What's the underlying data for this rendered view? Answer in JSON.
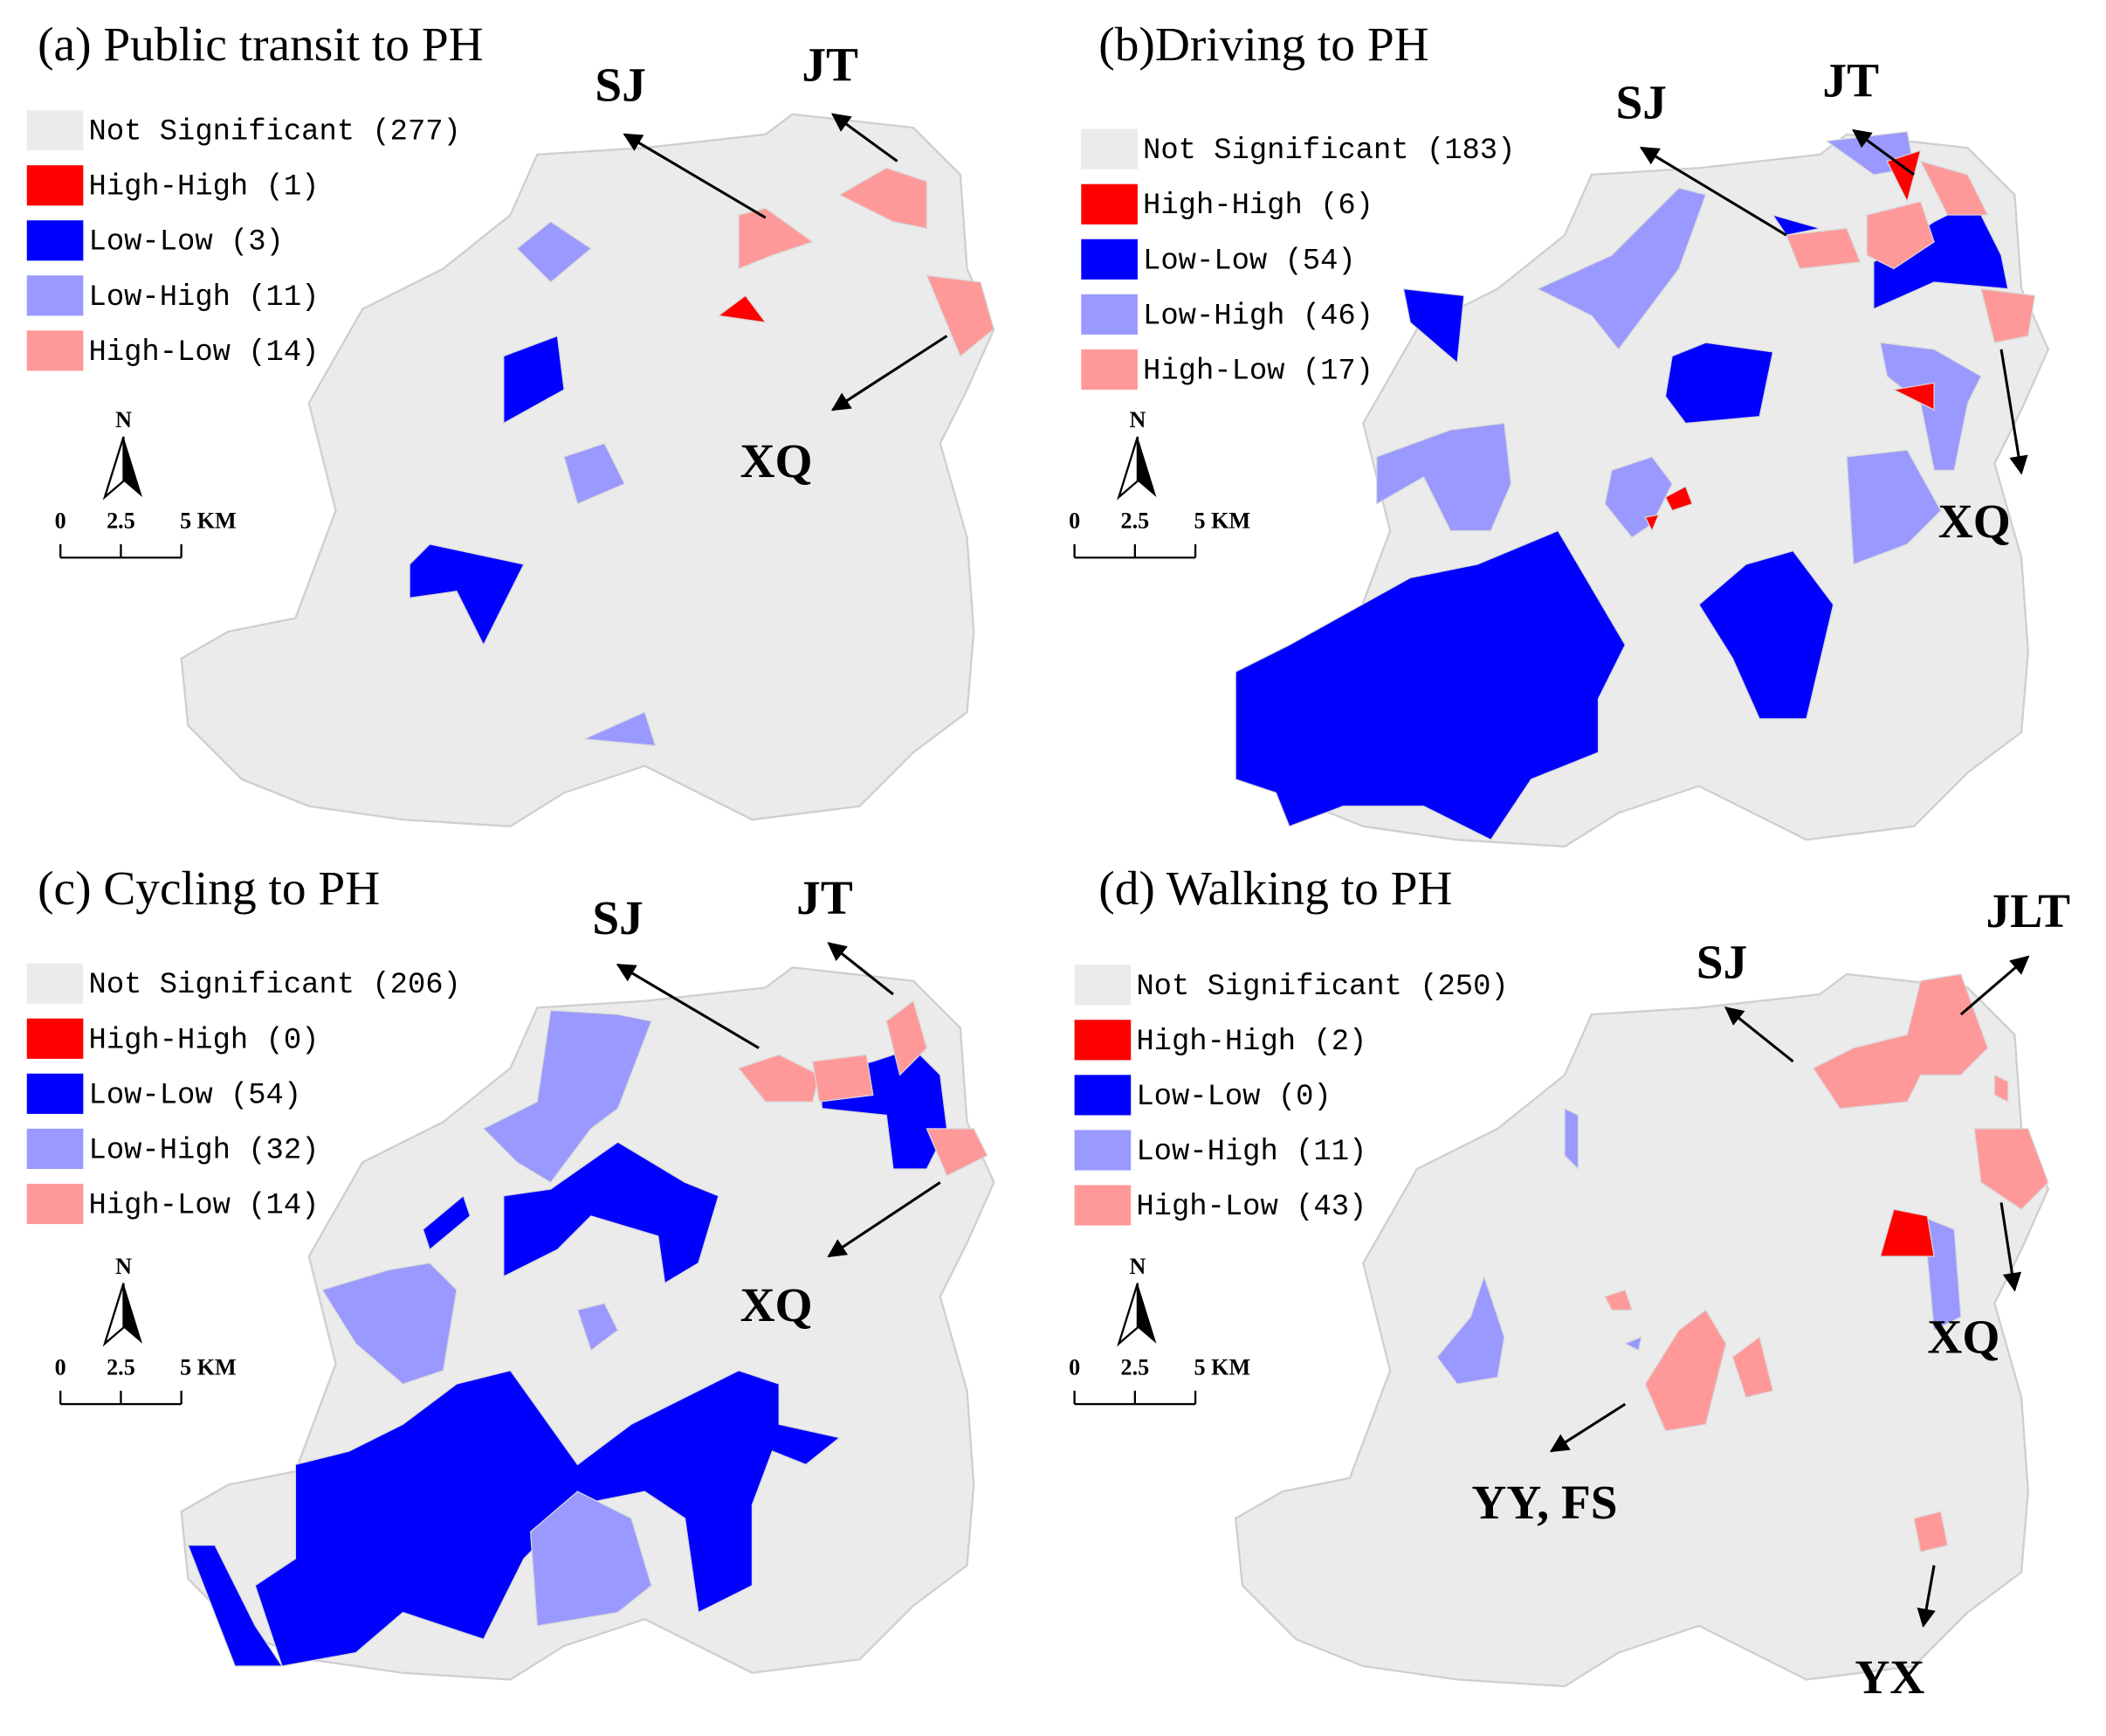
{
  "panels": [
    {
      "title": "(a) Public transit to PH",
      "legend": [
        {
          "label": "Not Significant (277)",
          "color": "#ebebeb"
        },
        {
          "label": "High-High (1)",
          "color": "#ff0000"
        },
        {
          "label": "Low-Low (3)",
          "color": "#0000ff"
        },
        {
          "label": "Low-High (11)",
          "color": "#9999ff"
        },
        {
          "label": "High-Low (14)",
          "color": "#ff9999"
        }
      ],
      "places": [
        "SJ",
        "JT",
        "XQ"
      ],
      "north": "N",
      "scale": [
        "0",
        "2.5",
        "5 KM"
      ]
    },
    {
      "title": "(b)Driving to PH",
      "legend": [
        {
          "label": "Not Significant (183)",
          "color": "#ebebeb"
        },
        {
          "label": "High-High (6)",
          "color": "#ff0000"
        },
        {
          "label": "Low-Low (54)",
          "color": "#0000ff"
        },
        {
          "label": "Low-High (46)",
          "color": "#9999ff"
        },
        {
          "label": "High-Low (17)",
          "color": "#ff9999"
        }
      ],
      "places": [
        "SJ",
        "JT",
        "XQ"
      ],
      "north": "N",
      "scale": [
        "0",
        "2.5",
        "5 KM"
      ]
    },
    {
      "title": "(c) Cycling to PH",
      "legend": [
        {
          "label": "Not Significant (206)",
          "color": "#ebebeb"
        },
        {
          "label": "High-High (0)",
          "color": "#ff0000"
        },
        {
          "label": "Low-Low (54)",
          "color": "#0000ff"
        },
        {
          "label": "Low-High (32)",
          "color": "#9999ff"
        },
        {
          "label": "High-Low (14)",
          "color": "#ff9999"
        }
      ],
      "places": [
        "SJ",
        "JT",
        "XQ"
      ],
      "north": "N",
      "scale": [
        "0",
        "2.5",
        "5 KM"
      ]
    },
    {
      "title": "(d) Walking to PH",
      "legend": [
        {
          "label": "Not Significant (250)",
          "color": "#ebebeb"
        },
        {
          "label": "High-High (2)",
          "color": "#ff0000"
        },
        {
          "label": "Low-Low (0)",
          "color": "#0000ff"
        },
        {
          "label": "Low-High (11)",
          "color": "#9999ff"
        },
        {
          "label": "High-Low (43)",
          "color": "#ff9999"
        }
      ],
      "places": [
        "SJ",
        "JLT",
        "XQ",
        "YY, FS",
        "YX"
      ],
      "north": "N",
      "scale": [
        "0",
        "2.5",
        "5 KM"
      ]
    }
  ]
}
